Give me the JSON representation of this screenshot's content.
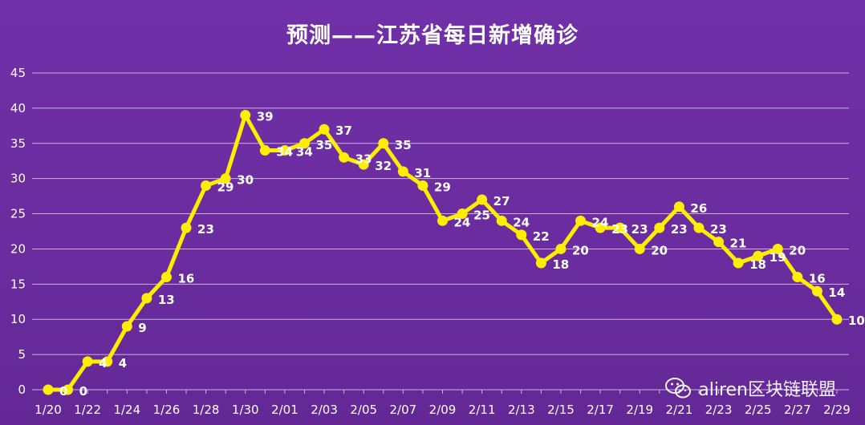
{
  "chart_data": {
    "type": "line",
    "title": "预测——江苏省每日新增确诊",
    "xlabel": "",
    "ylabel": "",
    "ylim": [
      0,
      45
    ],
    "yticks": [
      0,
      5,
      10,
      15,
      20,
      25,
      30,
      35,
      40,
      45
    ],
    "grid": true,
    "legend": "none",
    "x": [
      "1/20",
      "1/21",
      "1/22",
      "1/23",
      "1/24",
      "1/25",
      "1/26",
      "1/27",
      "1/28",
      "1/29",
      "1/30",
      "1/31",
      "2/01",
      "2/02",
      "2/03",
      "2/04",
      "2/05",
      "2/06",
      "2/07",
      "2/08",
      "2/09",
      "2/10",
      "2/11",
      "2/12",
      "2/13",
      "2/14",
      "2/15",
      "2/16",
      "2/17",
      "2/18",
      "2/19",
      "2/20",
      "2/21",
      "2/22",
      "2/23",
      "2/24",
      "2/25",
      "2/26",
      "2/27",
      "2/28",
      "2/29"
    ],
    "xtick_labels": [
      "1/20",
      "1/22",
      "1/24",
      "1/26",
      "1/28",
      "1/30",
      "2/01",
      "2/03",
      "2/05",
      "2/07",
      "2/09",
      "2/11",
      "2/13",
      "2/15",
      "2/17",
      "2/19",
      "2/21",
      "2/23",
      "2/25",
      "2/27",
      "2/29"
    ],
    "series": [
      {
        "name": "",
        "values": [
          0,
          0,
          4,
          4,
          9,
          13,
          16,
          23,
          29,
          30,
          39,
          34,
          34,
          35,
          37,
          33,
          32,
          35,
          31,
          29,
          24,
          25,
          27,
          24,
          22,
          18,
          20,
          24,
          23,
          23,
          20,
          23,
          26,
          23,
          21,
          18,
          19,
          20,
          16,
          14,
          10
        ],
        "labels": [
          "0",
          "0",
          "4",
          "4",
          "9",
          "13",
          "16",
          "23",
          "29",
          "30",
          "39",
          "34",
          "34",
          "35",
          "37",
          "33",
          "32",
          "35",
          "31",
          "29",
          "24",
          "25",
          "27",
          "24",
          "22",
          "18",
          "20",
          "24",
          "23",
          "23",
          "20",
          "23",
          "26",
          "23",
          "21",
          "18",
          "19",
          "20",
          "16",
          "14",
          "10"
        ]
      }
    ],
    "colors": {
      "background": "#6a2c9e",
      "line": "#ffee00",
      "grid": "#c9b3e0",
      "text": "#ffffff"
    }
  },
  "watermark": {
    "icon": "wechat-icon",
    "text": "aliren区块链联盟"
  }
}
